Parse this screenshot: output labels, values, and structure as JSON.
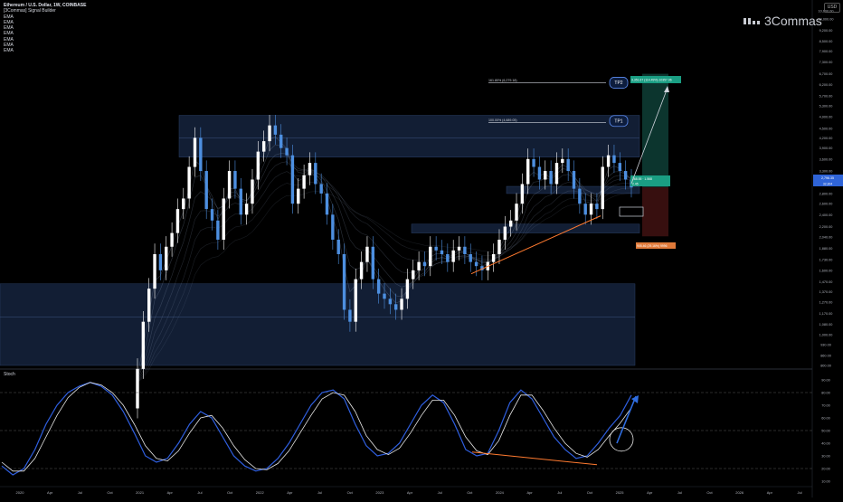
{
  "header": {
    "title": "Ethereum / U.S. Dollar, 1W, COINBASE",
    "indicators": [
      "[3Commas] Signal Builder",
      "EMA",
      "EMA",
      "EMA",
      "EMA",
      "EMA",
      "EMA",
      "EMA"
    ]
  },
  "brand": {
    "name": "3Commas"
  },
  "currency": "USD",
  "stoch_label": "Stoch",
  "colors": {
    "bull": "#ffffff",
    "bear": "#4d8fe0",
    "zone": "#15233d",
    "stoch_k": "#2f5fe0",
    "stoch_d": "#e8e8e8",
    "trend": "#ff7a2f",
    "target_up": "#1a9e83",
    "stop": "#9b2c2c"
  },
  "chart_data": [
    {
      "type": "candlestick",
      "title": "Ethereum / U.S. Dollar, 1W, COINBASE",
      "price_axis": {
        "scale": "log",
        "ticks": [
          "10,600.00",
          "10,000.00",
          "9,200.00",
          "8,500.00",
          "7,900.00",
          "7,300.00",
          "6,700.00",
          "6,200.00",
          "5,700.00",
          "5,300.00",
          "4,900.00",
          "4,500.00",
          "4,200.00",
          "3,900.00",
          "3,600.00",
          "3,300.00",
          "3,100.00",
          "2,800.00",
          "2,600.00",
          "2,400.00",
          "2,200.00",
          "2,040.00",
          "1,880.00",
          "1,730.00",
          "1,600.00",
          "1,470.00",
          "1,370.00",
          "1,270.00",
          "1,170.00",
          "1,080.00",
          "1,000.00",
          "930.00",
          "860.00",
          "800.00"
        ]
      },
      "time_axis": [
        "2020",
        "Apr",
        "Jul",
        "Oct",
        "2021",
        "Apr",
        "Jul",
        "Oct",
        "2022",
        "Apr",
        "Jul",
        "Oct",
        "2023",
        "Apr",
        "Jul",
        "Oct",
        "2024",
        "Apr",
        "Jul",
        "Oct",
        "2025",
        "Apr",
        "Jul",
        "Oct",
        "2026",
        "Apr",
        "Jul"
      ],
      "approx_closes_2021_2025": [
        780,
        1100,
        1400,
        1800,
        1600,
        1900,
        2100,
        2500,
        2700,
        3400,
        4200,
        3300,
        2500,
        2300,
        2000,
        2700,
        3300,
        2900,
        2400,
        2600,
        3100,
        3800,
        4100,
        4600,
        4300,
        3900,
        3700,
        2600,
        2900,
        3200,
        3500,
        3000,
        2800,
        2400,
        2000,
        1800,
        1200,
        1100,
        1500,
        1700,
        1900,
        1500,
        1350,
        1300,
        1250,
        1200,
        1300,
        1500,
        1600,
        1700,
        1650,
        1900,
        1850,
        1800,
        1700,
        1850,
        1900,
        1800,
        1700,
        1650,
        1600,
        1700,
        1800,
        2000,
        2200,
        2300,
        2600,
        3000,
        3600,
        3400,
        3100,
        3300,
        3000,
        3500,
        3600,
        3300,
        2900,
        2600,
        2400,
        2600,
        2500,
        3400,
        3700,
        3500,
        3300,
        3100,
        2927
      ],
      "last_price_label": "2,927.51",
      "levels": {
        "tp1_text": "100.00% (4,689.05)",
        "tp2_text": "161.80% (6,279.18)",
        "tp1_badge": "TP1",
        "tp2_badge": "TP2",
        "target_text": "3,351.67 (114.49%) 10357.06",
        "entry_text": "268.55 · 1.568",
        "entry_sub": "2.45",
        "stop_text": "905.46 (29.16%) 9996",
        "price_tags": [
          "2,796.35",
          "32,304"
        ]
      },
      "zones": [
        [
          3650,
          4950
        ],
        [
          2100,
          2240
        ],
        [
          800,
          1450
        ],
        [
          2800,
          2950
        ]
      ]
    },
    {
      "type": "line",
      "title": "Stoch",
      "y_ticks": [
        "90.00",
        "80.00",
        "70.00",
        "60.00",
        "50.00",
        "40.00",
        "30.00",
        "20.00",
        "10.00"
      ],
      "ylim": [
        10,
        90
      ],
      "series": [
        {
          "values": [
            22,
            15,
            20,
            35,
            55,
            70,
            80,
            85,
            88,
            85,
            78,
            65,
            48,
            30,
            25,
            28,
            40,
            55,
            65,
            60,
            45,
            30,
            22,
            18,
            20,
            28,
            40,
            55,
            70,
            80,
            82,
            75,
            55,
            38,
            30,
            32,
            40,
            55,
            70,
            78,
            72,
            55,
            35,
            30,
            32,
            50,
            72,
            82,
            75,
            60,
            45,
            35,
            28,
            30,
            40,
            52,
            62,
            78
          ]
        },
        {
          "values": [
            25,
            18,
            18,
            28,
            45,
            62,
            76,
            84,
            88,
            86,
            80,
            70,
            55,
            38,
            28,
            26,
            34,
            48,
            60,
            62,
            52,
            38,
            27,
            20,
            19,
            24,
            34,
            48,
            62,
            75,
            80,
            78,
            65,
            46,
            35,
            31,
            36,
            48,
            62,
            74,
            74,
            62,
            45,
            34,
            31,
            42,
            62,
            78,
            78,
            66,
            52,
            40,
            32,
            29,
            35,
            46,
            56,
            68
          ]
        }
      ],
      "overbought": 80,
      "oversold": 20
    }
  ]
}
